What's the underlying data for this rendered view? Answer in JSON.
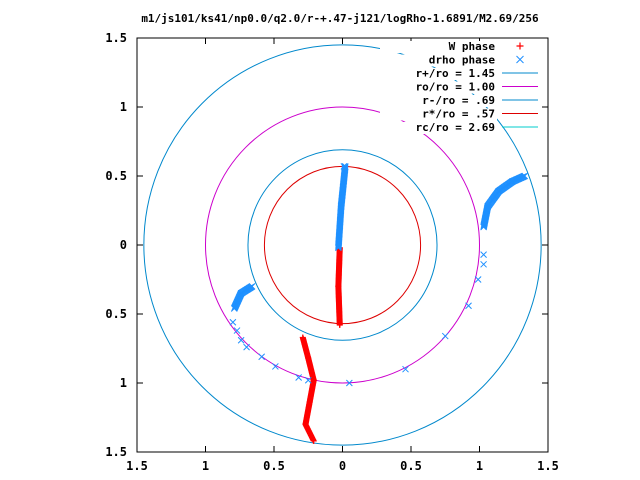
{
  "chart_data": {
    "type": "scatter",
    "title": "m1/js101/ks41/np0.0/q2.0/r-+.47-j121/logRho-1.6891/M2.69/256",
    "xlim": [
      -1.5,
      1.5
    ],
    "ylim": [
      -1.5,
      1.5
    ],
    "x_ticks": [
      -1.5,
      -1,
      -0.5,
      0,
      0.5,
      1,
      1.5
    ],
    "y_ticks": [
      -1.5,
      -1,
      -0.5,
      0,
      0.5,
      1,
      1.5
    ],
    "x_tick_labels": [
      "1.5",
      "1",
      "0.5",
      "0",
      "0.5",
      "1",
      "1.5"
    ],
    "y_tick_labels": [
      "1.5",
      "1",
      "0.5",
      "0",
      "0.5",
      "1",
      "1.5"
    ],
    "grid": false,
    "legend_position": "top-right",
    "legend": [
      {
        "label": "W phase",
        "marker": "plus",
        "color": "#ff0000"
      },
      {
        "label": "drho phase",
        "marker": "cross",
        "color": "#1e90ff"
      },
      {
        "label": "r+/ro = 1.45",
        "marker": "line",
        "color": "#0088cc"
      },
      {
        "label": "ro/ro = 1.00",
        "marker": "line",
        "color": "#cc00cc"
      },
      {
        "label": "r-/ro = .69",
        "marker": "line",
        "color": "#0088cc"
      },
      {
        "label": "r*/ro = .57",
        "marker": "line",
        "color": "#dd0000"
      },
      {
        "label": "rc/ro = 2.69",
        "marker": "line",
        "color": "#00cccc"
      }
    ],
    "circles": [
      {
        "name": "r+/ro",
        "r": 1.45,
        "color": "#0088cc"
      },
      {
        "name": "ro/ro",
        "r": 1.0,
        "color": "#cc00cc"
      },
      {
        "name": "r-/ro",
        "r": 0.69,
        "color": "#0088cc"
      },
      {
        "name": "r*/ro",
        "r": 0.57,
        "color": "#dd0000"
      }
    ],
    "series": [
      {
        "name": "W phase",
        "color": "#ff0000",
        "marker": "plus",
        "segments": [
          [
            [
              -0.02,
              -0.02
            ],
            [
              -0.03,
              -0.3
            ],
            [
              -0.02,
              -0.58
            ]
          ],
          [
            [
              -0.29,
              -0.67
            ],
            [
              -0.25,
              -0.82
            ],
            [
              -0.21,
              -0.98
            ],
            [
              -0.24,
              -1.14
            ],
            [
              -0.27,
              -1.3
            ],
            [
              -0.21,
              -1.42
            ]
          ]
        ]
      },
      {
        "name": "drho phase",
        "color": "#1e90ff",
        "marker": "cross",
        "segments": [
          [
            [
              -0.03,
              -0.02
            ],
            [
              -0.01,
              0.28
            ],
            [
              0.02,
              0.57
            ]
          ],
          [
            [
              -0.79,
              -0.46
            ],
            [
              -0.74,
              -0.35
            ],
            [
              -0.66,
              -0.3
            ]
          ],
          [
            [
              1.03,
              0.13
            ],
            [
              1.06,
              0.28
            ],
            [
              1.14,
              0.39
            ],
            [
              1.24,
              0.46
            ],
            [
              1.33,
              0.5
            ]
          ]
        ],
        "sparse_points": [
          [
            0.01,
            0.57
          ],
          [
            -0.8,
            -0.56
          ],
          [
            -0.77,
            -0.62
          ],
          [
            -0.74,
            -0.69
          ],
          [
            -0.7,
            -0.74
          ],
          [
            -0.59,
            -0.81
          ],
          [
            -0.49,
            -0.88
          ],
          [
            -0.32,
            -0.96
          ],
          [
            -0.25,
            -0.98
          ],
          [
            0.05,
            -1.0
          ],
          [
            0.46,
            -0.9
          ],
          [
            0.75,
            -0.66
          ],
          [
            0.92,
            -0.44
          ],
          [
            0.99,
            -0.25
          ],
          [
            1.03,
            -0.14
          ],
          [
            1.03,
            -0.07
          ]
        ]
      }
    ]
  }
}
